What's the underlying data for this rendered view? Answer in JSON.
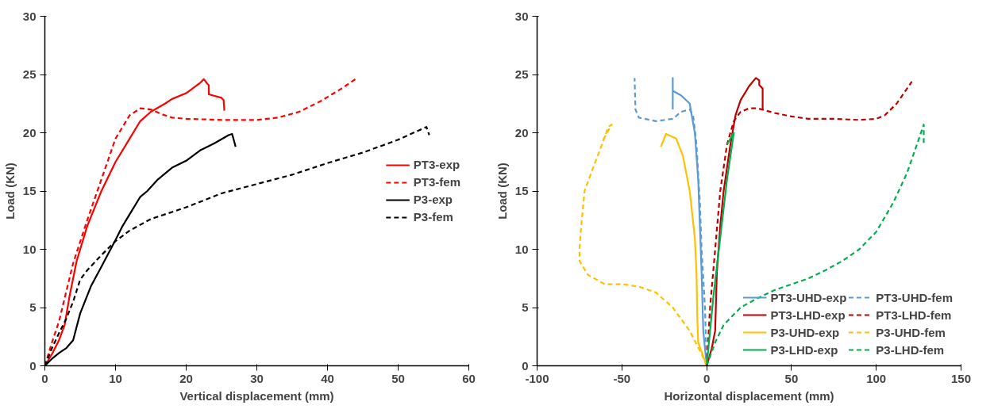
{
  "chart_data": [
    {
      "type": "line",
      "xlabel": "Vertical displacement (mm)",
      "ylabel": "Load (KN)",
      "xlim": [
        0,
        60
      ],
      "xticks": [
        0,
        10,
        20,
        30,
        40,
        50,
        60
      ],
      "ylim": [
        0,
        30
      ],
      "yticks": [
        0,
        5,
        10,
        15,
        20,
        25,
        30
      ],
      "grid": false,
      "legend": "right",
      "marker": "none",
      "series": [
        {
          "name": "PT3-exp",
          "color": "#ff0000",
          "line_style": "solid",
          "x": [
            0,
            1,
            2,
            2.8,
            3.5,
            4.5,
            6,
            8,
            10,
            12,
            13.5,
            15,
            17,
            18,
            20,
            22,
            22.5,
            23,
            23.2,
            23.2,
            25,
            25.3,
            25.4
          ],
          "values": [
            0,
            1,
            2.2,
            3.5,
            6,
            9,
            12,
            15,
            17.5,
            19.5,
            21,
            21.8,
            22.5,
            22.9,
            23.4,
            24.3,
            24.6,
            24.2,
            24.1,
            23.3,
            23,
            22.8,
            21.9
          ]
        },
        {
          "name": "PT3-fem",
          "color": "#ff0000",
          "line_style": "dashed",
          "x": [
            0,
            1,
            2,
            3,
            4,
            6,
            8,
            10,
            12,
            13.5,
            15,
            16.5,
            18,
            20,
            25,
            30,
            33,
            36,
            39,
            42,
            44.2
          ],
          "values": [
            0,
            2,
            3.8,
            6.3,
            8.8,
            12.5,
            16,
            19.5,
            21.5,
            22.1,
            22,
            21.6,
            21.3,
            21.2,
            21.1,
            21.1,
            21.3,
            21.8,
            22.7,
            23.8,
            24.7
          ]
        },
        {
          "name": "P3-exp",
          "color": "#000000",
          "line_style": "solid",
          "x": [
            0,
            1,
            2,
            3,
            4,
            5,
            6.5,
            8,
            10,
            11,
            12,
            13.5,
            14.5,
            16,
            18,
            20,
            22,
            24,
            26,
            26.5,
            27
          ],
          "values": [
            0,
            0.6,
            1.1,
            1.5,
            2.2,
            4.5,
            6.8,
            8.5,
            10.8,
            12,
            13,
            14.5,
            15,
            16,
            17,
            17.6,
            18.5,
            19.1,
            19.8,
            19.9,
            18.8
          ]
        },
        {
          "name": "P3-fem",
          "color": "#000000",
          "line_style": "dashed",
          "x": [
            0,
            1,
            2,
            3,
            4,
            5,
            6,
            8,
            10,
            12,
            15,
            20,
            25,
            30,
            35,
            40,
            45,
            50,
            54,
            54.4
          ],
          "values": [
            0,
            1.5,
            2.8,
            4,
            5.5,
            7.4,
            8.2,
            9.5,
            10.7,
            11.6,
            12.6,
            13.6,
            14.8,
            15.6,
            16.4,
            17.4,
            18.3,
            19.4,
            20.5,
            19.8
          ]
        }
      ]
    },
    {
      "type": "line",
      "xlabel": "Horizontal displacement (mm)",
      "ylabel": "Load (KN)",
      "xlim": [
        -100,
        150
      ],
      "xticks": [
        -100,
        -50,
        0,
        50,
        100,
        150
      ],
      "ylim": [
        0,
        30
      ],
      "yticks": [
        0,
        5,
        10,
        15,
        20,
        25,
        30
      ],
      "grid": false,
      "legend": "bottom right",
      "marker": "none",
      "series": [
        {
          "name": "PT3-UHD-exp",
          "color": "#5b9bd5",
          "line_style": "solid",
          "x": [
            0,
            -2,
            -3,
            -4,
            -5,
            -7,
            -10,
            -15,
            -20,
            -20,
            -20
          ],
          "values": [
            0,
            3,
            8,
            12,
            16,
            20,
            22.5,
            23.2,
            23.6,
            24.7,
            22
          ]
        },
        {
          "name": "PT3-UHD-fem",
          "color": "#5b9bd5",
          "line_style": "dashed",
          "x": [
            0,
            -1,
            -3,
            -4,
            -6,
            -8,
            -10,
            -15,
            -20,
            -30,
            -40,
            -42,
            -42.5
          ],
          "values": [
            0,
            5,
            10,
            14,
            19,
            21.5,
            22,
            21.8,
            21.2,
            21,
            21.3,
            22,
            24.7
          ]
        },
        {
          "name": "PT3-LHD-exp",
          "color": "#c00000",
          "line_style": "solid",
          "x": [
            0,
            3,
            5,
            6,
            8,
            10,
            14,
            17,
            20,
            25,
            29,
            31,
            31,
            33,
            33
          ],
          "values": [
            0,
            1.5,
            3,
            8,
            12,
            15,
            19,
            21.5,
            22.8,
            24,
            24.7,
            24.5,
            24.1,
            23.8,
            22
          ]
        },
        {
          "name": "PT3-LHD-fem",
          "color": "#c00000",
          "line_style": "dashed",
          "x": [
            0,
            2,
            5,
            8,
            12,
            16,
            20,
            25,
            30,
            40,
            50,
            60,
            75,
            90,
            100,
            105,
            112,
            121
          ],
          "values": [
            0,
            5,
            10,
            15,
            19,
            21,
            21.8,
            22.1,
            22.1,
            21.7,
            21.4,
            21.2,
            21.2,
            21.1,
            21.2,
            21.5,
            22.5,
            24.4
          ]
        },
        {
          "name": "P3-UHD-exp",
          "color": "#ffc000",
          "line_style": "solid",
          "x": [
            0,
            -2,
            -5,
            -5.5,
            -6,
            -7,
            -10,
            -14,
            -18,
            -24,
            -27
          ],
          "values": [
            0,
            0.8,
            2,
            4,
            8,
            11,
            15,
            18,
            19.5,
            19.9,
            18.8
          ]
        },
        {
          "name": "P3-UHD-fem",
          "color": "#ffc000",
          "line_style": "dashed",
          "x": [
            0,
            -3,
            -10,
            -20,
            -30,
            -40,
            -50,
            -60,
            -70,
            -75,
            -75,
            -74,
            -72,
            -67,
            -63,
            -58,
            -56,
            -61
          ],
          "values": [
            0,
            1,
            3,
            5,
            6.3,
            6.8,
            7,
            7,
            7.8,
            9,
            10,
            12,
            15,
            17,
            18.5,
            20.5,
            20.7,
            19.4
          ]
        },
        {
          "name": "P3-LHD-exp",
          "color": "#00b050",
          "line_style": "solid",
          "x": [
            0,
            2,
            4,
            8,
            12,
            16,
            12
          ],
          "values": [
            0,
            3,
            6,
            11,
            16,
            20,
            19
          ]
        },
        {
          "name": "P3-LHD-fem",
          "color": "#00b050",
          "line_style": "dashed",
          "x": [
            0,
            5,
            10,
            20,
            30,
            40,
            50,
            60,
            70,
            80,
            90,
            100,
            110,
            118,
            124,
            128,
            128
          ],
          "values": [
            0,
            2,
            3.5,
            5,
            5.8,
            6.5,
            7,
            7.5,
            8.2,
            9,
            10,
            11.5,
            14,
            16.5,
            19,
            20.7,
            19
          ]
        }
      ]
    }
  ]
}
